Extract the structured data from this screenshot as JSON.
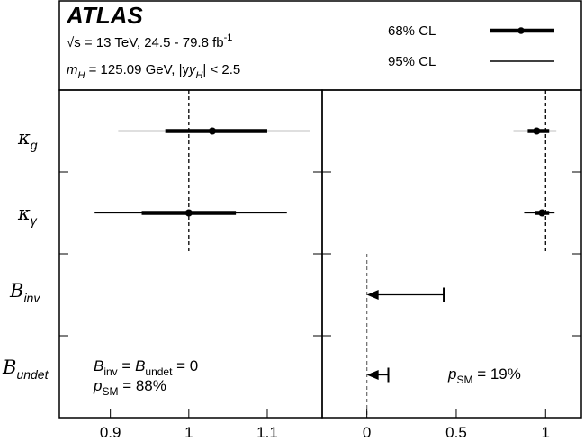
{
  "chart_data": {
    "type": "scatter",
    "title": "ATLAS",
    "subtitle": {
      "energy": "√s = 13 TeV, 24.5 - 79.8 fb",
      "lumi_unit_power": "-1",
      "mass_prefix": "m",
      "mass_sub": "H",
      "mass_text": " = 125.09 GeV, |y",
      "rap_sub": "H",
      "rap_text": "| < 2.5"
    },
    "legend": {
      "placement": "top-right",
      "entries": [
        {
          "label": "68% CL",
          "style": "thick-with-dot"
        },
        {
          "label": "95% CL",
          "style": "thin"
        }
      ]
    },
    "parameters": [
      {
        "symbol": "κ",
        "sub": "g"
      },
      {
        "symbol": "κ",
        "sub": "γ"
      },
      {
        "symbol": "B",
        "sub": "inv"
      },
      {
        "symbol": "B",
        "sub": "undet"
      }
    ],
    "left_panel": {
      "xlim": [
        0.835,
        1.17
      ],
      "xticks": [
        "0.9",
        "1",
        "1.1"
      ],
      "xtick_values": [
        0.9,
        1.0,
        1.1
      ],
      "reference": 1.0,
      "points": [
        {
          "param": "kappa_g",
          "central": 1.03,
          "cl68": [
            0.97,
            1.1
          ],
          "cl95": [
            0.91,
            1.155
          ]
        },
        {
          "param": "kappa_gamma",
          "central": 1.0,
          "cl68": [
            0.94,
            1.06
          ],
          "cl95": [
            0.88,
            1.125
          ]
        }
      ],
      "annotation": {
        "line1_a": "B",
        "line1_a_sub": "inv",
        "line1_b": " = ",
        "line1_c": "B",
        "line1_c_sub": "undet",
        "line1_d": " = 0",
        "line2_a": "p",
        "line2_a_sub": "SM",
        "line2_b": " = 88%"
      }
    },
    "right_panel": {
      "xlim": [
        -0.25,
        1.2
      ],
      "xticks": [
        "0",
        "0.5",
        "1"
      ],
      "xtick_values": [
        0,
        0.5,
        1.0
      ],
      "reference": 1.0,
      "zero_reference": 0,
      "points": [
        {
          "param": "kappa_g",
          "central": 0.95,
          "cl68": [
            0.9,
            1.02
          ],
          "cl95": [
            0.82,
            1.06
          ]
        },
        {
          "param": "kappa_gamma",
          "central": 0.98,
          "cl68": [
            0.94,
            1.02
          ],
          "cl95": [
            0.88,
            1.05
          ]
        }
      ],
      "upper_limits": [
        {
          "param": "B_inv",
          "from": 0.0,
          "limit": 0.43
        },
        {
          "param": "B_undet",
          "from": 0.0,
          "limit": 0.12
        }
      ],
      "annotation": {
        "a": "p",
        "a_sub": "SM",
        "b": " = 19%"
      }
    }
  }
}
